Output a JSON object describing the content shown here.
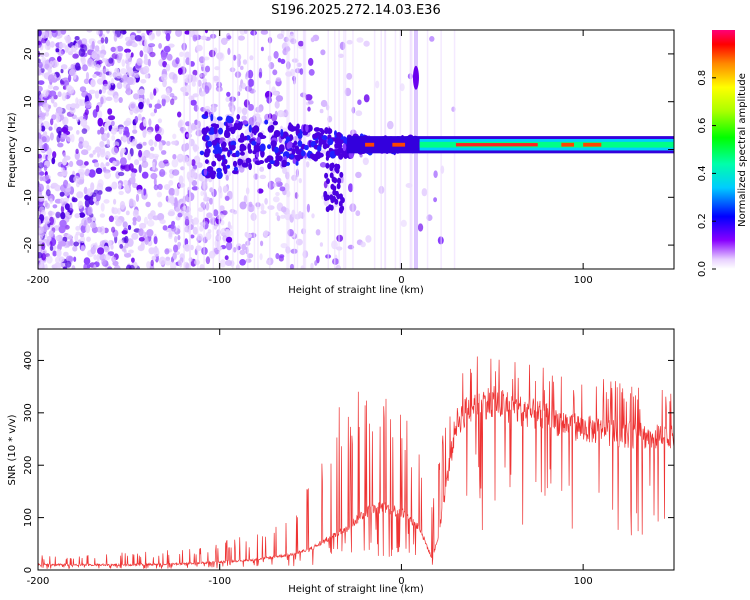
{
  "title": "S196.2025.272.14.03.E36",
  "chart_data": [
    {
      "type": "heatmap",
      "name": "spectrogram",
      "xlabel": "Height of straight line (km)",
      "ylabel": "Frequency (Hz)",
      "xlim": [
        -200,
        150
      ],
      "ylim": [
        -25,
        25
      ],
      "xticks": [
        -200,
        -100,
        0,
        100
      ],
      "yticks": [
        20,
        10,
        0,
        -10,
        -20
      ],
      "colorbar": {
        "label": "Normalized spectral amplitude",
        "range": [
          0,
          1
        ],
        "ticks": [
          0.0,
          0.2,
          0.4,
          0.6,
          0.8
        ]
      },
      "description_points": {
        "carrier_center_hz": 1,
        "carrier_strong_from_km": 10,
        "vertical_line_km": 8
      }
    },
    {
      "type": "line",
      "name": "snr",
      "xlabel": "Height of straight line (km)",
      "ylabel": "SNR (10 * v/v)",
      "xlim": [
        -200,
        150
      ],
      "ylim": [
        0,
        460
      ],
      "xticks": [
        -200,
        -100,
        0,
        100
      ],
      "yticks": [
        0,
        100,
        200,
        300,
        400
      ],
      "color": "#ee3333",
      "envelope": {
        "x": [
          -200,
          -150,
          -120,
          -100,
          -80,
          -60,
          -50,
          -40,
          -30,
          -20,
          -10,
          0,
          10,
          17,
          20,
          30,
          40,
          50,
          60,
          80,
          90,
          100,
          120,
          150
        ],
        "base": [
          10,
          10,
          12,
          15,
          20,
          30,
          40,
          60,
          80,
          110,
          120,
          110,
          80,
          20,
          60,
          280,
          320,
          320,
          310,
          290,
          280,
          270,
          260,
          250
        ],
        "spike": [
          30,
          35,
          40,
          55,
          70,
          110,
          170,
          280,
          340,
          400,
          350,
          330,
          250,
          120,
          220,
          420,
          430,
          410,
          400,
          390,
          380,
          370,
          360,
          340
        ]
      }
    }
  ]
}
